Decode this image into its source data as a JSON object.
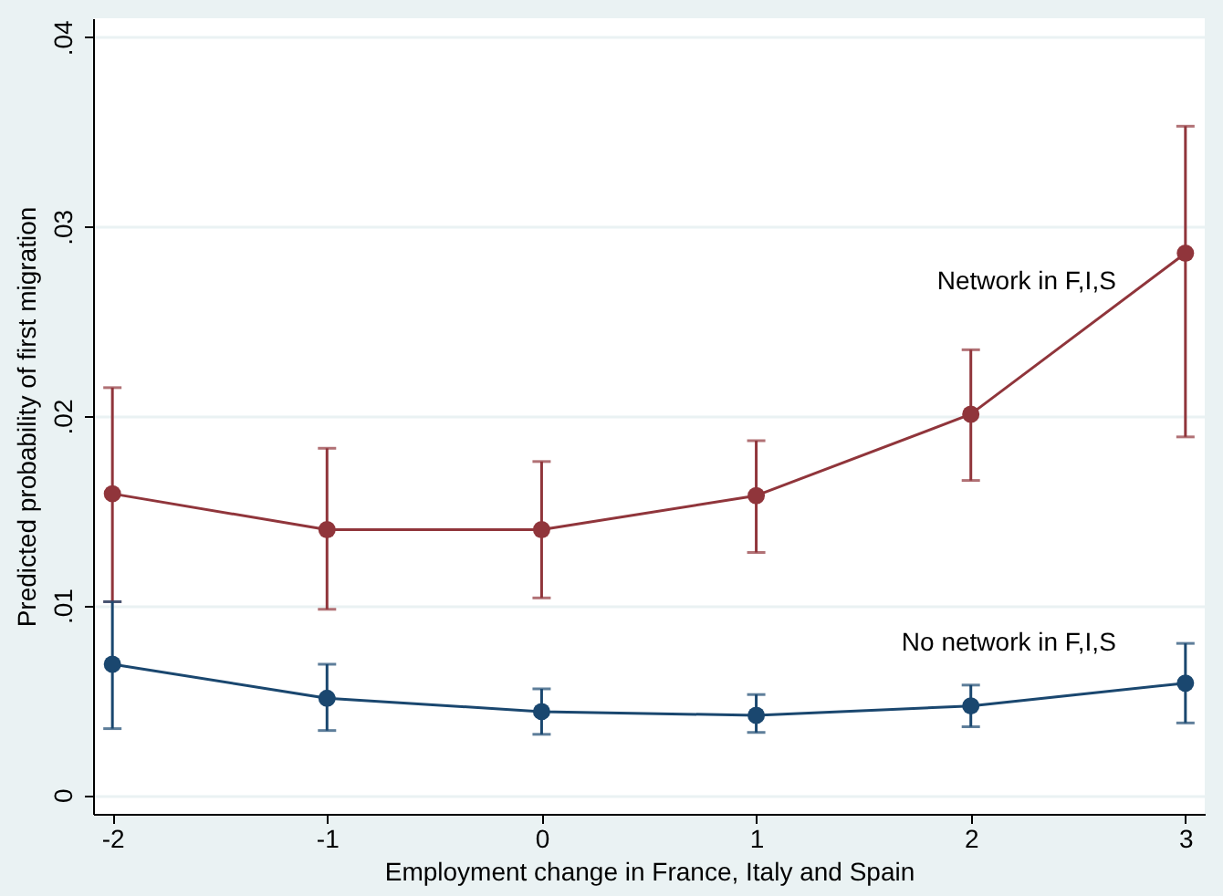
{
  "chart_data": {
    "type": "line",
    "xlabel": "Employment change in France, Italy and Spain",
    "ylabel": "Predicted probability of first migration",
    "x": [
      -2,
      -1,
      0,
      1,
      2,
      3
    ],
    "series": [
      {
        "name": "Network in F,I,S",
        "color": "#90353b",
        "values": [
          0.0159,
          0.014,
          0.014,
          0.0158,
          0.0201,
          0.0286
        ],
        "errors": [
          [
            0.0102,
            0.0215
          ],
          [
            0.0098,
            0.0183
          ],
          [
            0.0104,
            0.0176
          ],
          [
            0.0128,
            0.0187
          ],
          [
            0.0166,
            0.0235
          ],
          [
            0.0189,
            0.0353
          ]
        ]
      },
      {
        "name": "No network in F,I,S",
        "color": "#1a476f",
        "values": [
          0.0069,
          0.0051,
          0.0044,
          0.0042,
          0.0047,
          0.0059
        ],
        "errors": [
          [
            0.0035,
            0.0102
          ],
          [
            0.0034,
            0.0069
          ],
          [
            0.0032,
            0.0056
          ],
          [
            0.0033,
            0.0053
          ],
          [
            0.0036,
            0.0058
          ],
          [
            0.0038,
            0.008
          ]
        ]
      }
    ],
    "xlim": [
      -2.09,
      3.09
    ],
    "xticks": [
      -2,
      -1,
      0,
      1,
      2,
      3
    ],
    "ylim": [
      -0.001,
      0.041
    ],
    "yticks": [
      {
        "value": 0,
        "label": "0"
      },
      {
        "value": 0.01,
        "label": ".01"
      },
      {
        "value": 0.02,
        "label": ".02"
      },
      {
        "value": 0.03,
        "label": ".03"
      },
      {
        "value": 0.04,
        "label": ".04"
      }
    ],
    "grid": "y",
    "marker": "circle",
    "line_style": "solid"
  }
}
